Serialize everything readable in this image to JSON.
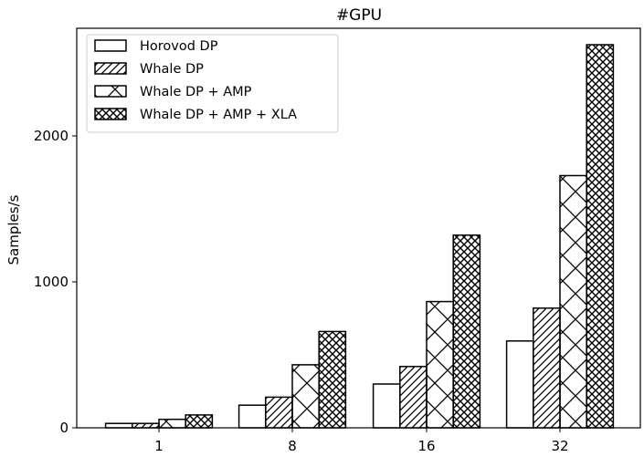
{
  "chart_data": {
    "type": "bar",
    "title": "#GPU",
    "xlabel": "",
    "ylabel": "Samples/s",
    "categories": [
      "1",
      "8",
      "16",
      "32"
    ],
    "ylim": [
      0,
      2700
    ],
    "yticks": [
      0,
      1000,
      2000
    ],
    "legend_position": "top-left",
    "grid": false,
    "series": [
      {
        "name": "Horovod DP",
        "pattern": "none",
        "values": [
          30,
          155,
          300,
          595
        ]
      },
      {
        "name": "Whale DP",
        "pattern": "diagonal",
        "values": [
          30,
          210,
          420,
          820
        ]
      },
      {
        "name": "Whale DP + AMP",
        "pattern": "cross",
        "values": [
          58,
          432,
          865,
          1728
        ]
      },
      {
        "name": "Whale DP + AMP + XLA",
        "pattern": "dense-cross",
        "values": [
          88,
          660,
          1320,
          2625
        ]
      }
    ]
  }
}
